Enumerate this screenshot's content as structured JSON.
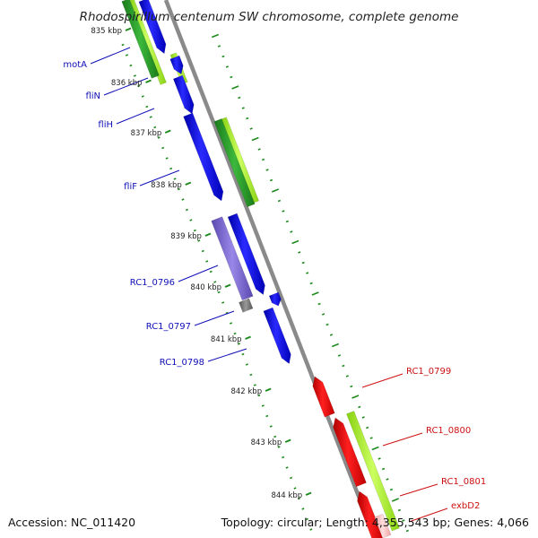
{
  "header": {
    "title": "Rhodospirillum centenum SW chromosome, complete genome"
  },
  "footer": {
    "accession": "Accession: NC_011420",
    "summary": "Topology: circular; Length: 4,355,543 bp; Genes: 4,066"
  },
  "scale": {
    "ticks": [
      "835 kbp",
      "836 kbp",
      "837 kbp",
      "838 kbp",
      "839 kbp",
      "840 kbp",
      "841 kbp",
      "842 kbp",
      "843 kbp",
      "844 kbp"
    ]
  },
  "gene_labels_left": [
    "motA",
    "fliN",
    "fliH",
    "fliF",
    "RC1_0796",
    "RC1_0797",
    "RC1_0798"
  ],
  "gene_labels_right": [
    "RC1_0799",
    "RC1_0800",
    "RC1_0801",
    "exbD2"
  ],
  "colors": {
    "forward_cds": "#0000e0",
    "reverse_cds": "#e00000",
    "feature_dark": "#2a9a2a",
    "feature_light": "#a8f028",
    "other_gene": "#7a66cc",
    "tick": "#1e8a1e",
    "backbone": "#888888",
    "label_left": "#1010b8",
    "label_right": "#cc1111"
  }
}
